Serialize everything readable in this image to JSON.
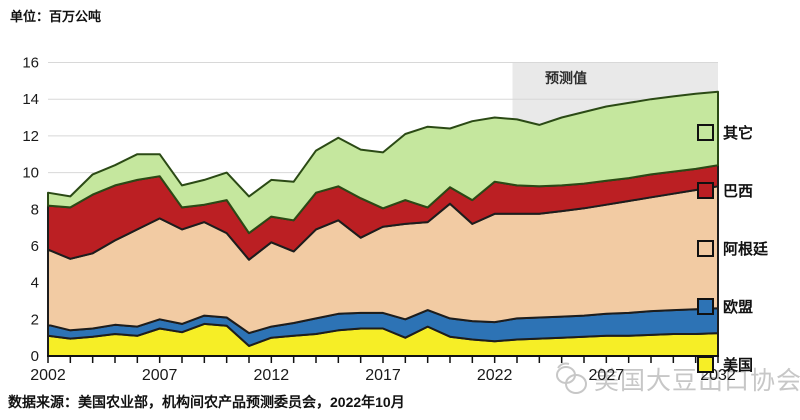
{
  "chart_data": {
    "type": "area",
    "stacked": true,
    "unit_label": "单位：百万公吨",
    "x": [
      2002,
      2003,
      2004,
      2005,
      2006,
      2007,
      2008,
      2009,
      2010,
      2011,
      2012,
      2013,
      2014,
      2015,
      2016,
      2017,
      2018,
      2019,
      2020,
      2021,
      2022,
      2023,
      2024,
      2025,
      2026,
      2027,
      2028,
      2029,
      2030,
      2031,
      2032
    ],
    "x_tick_labels": [
      "2002",
      "2007",
      "2012",
      "2017",
      "2022",
      "2027",
      "2032"
    ],
    "x_tick_years": [
      2002,
      2007,
      2012,
      2017,
      2022,
      2027,
      2032
    ],
    "ylim": [
      0,
      16
    ],
    "y_ticks": [
      0,
      2,
      4,
      6,
      8,
      10,
      12,
      14,
      16
    ],
    "grid": true,
    "grid_color": "#d8d8d8",
    "forecast": {
      "label": "预测值",
      "start_x": 2022.8,
      "band_color": "#e9e9e9"
    },
    "series": [
      {
        "name": "美国",
        "color": "#f6ee26",
        "edge": "#1d1d1d",
        "values": [
          1.1,
          0.95,
          1.05,
          1.2,
          1.1,
          1.5,
          1.3,
          1.75,
          1.65,
          0.55,
          1.0,
          1.1,
          1.2,
          1.4,
          1.5,
          1.5,
          1.0,
          1.6,
          1.05,
          0.9,
          0.8,
          0.9,
          0.95,
          1.0,
          1.05,
          1.1,
          1.1,
          1.15,
          1.2,
          1.2,
          1.25
        ]
      },
      {
        "name": "欧盟",
        "color": "#2d73b5",
        "edge": "#1d1d1d",
        "values": [
          0.6,
          0.45,
          0.45,
          0.5,
          0.5,
          0.5,
          0.45,
          0.45,
          0.45,
          0.7,
          0.6,
          0.7,
          0.85,
          0.9,
          0.85,
          0.85,
          1.0,
          0.9,
          1.0,
          1.0,
          1.05,
          1.15,
          1.15,
          1.15,
          1.15,
          1.2,
          1.25,
          1.3,
          1.3,
          1.35,
          1.35
        ]
      },
      {
        "name": "阿根廷",
        "color": "#f2cba3",
        "edge": "#1d1d1d",
        "values": [
          4.1,
          3.9,
          4.1,
          4.6,
          5.3,
          5.5,
          5.15,
          5.1,
          4.6,
          4.0,
          4.6,
          3.9,
          4.85,
          5.1,
          4.1,
          4.7,
          5.2,
          4.8,
          6.25,
          5.3,
          5.9,
          5.7,
          5.65,
          5.75,
          5.85,
          5.95,
          6.1,
          6.2,
          6.35,
          6.5,
          6.65
        ]
      },
      {
        "name": "巴西",
        "color": "#bb1f23",
        "edge": "#1d1d1d",
        "values": [
          2.4,
          2.8,
          3.2,
          3.0,
          2.7,
          2.3,
          1.2,
          0.95,
          1.8,
          1.45,
          1.4,
          1.7,
          2.0,
          1.85,
          2.15,
          1.0,
          1.3,
          0.8,
          0.9,
          1.3,
          1.75,
          1.55,
          1.5,
          1.4,
          1.35,
          1.3,
          1.25,
          1.25,
          1.2,
          1.15,
          1.15
        ]
      },
      {
        "name": "其它",
        "color": "#c5e79e",
        "edge": "#2b4a15",
        "values": [
          0.7,
          0.6,
          1.1,
          1.1,
          1.4,
          1.2,
          1.2,
          1.35,
          1.5,
          2.0,
          2.0,
          2.1,
          2.3,
          2.65,
          2.65,
          3.05,
          3.6,
          4.4,
          3.2,
          4.3,
          3.5,
          3.6,
          3.35,
          3.7,
          3.9,
          4.05,
          4.1,
          4.1,
          4.1,
          4.1,
          4.0
        ]
      }
    ],
    "legend": {
      "position": "right",
      "order_top_to_bottom": [
        "其它",
        "巴西",
        "阿根廷",
        "欧盟",
        "美国"
      ]
    },
    "source": "数据来源：美国农业部，机构间农产品预测委员会，2022年10月",
    "watermark": "美国大豆出口协会"
  }
}
